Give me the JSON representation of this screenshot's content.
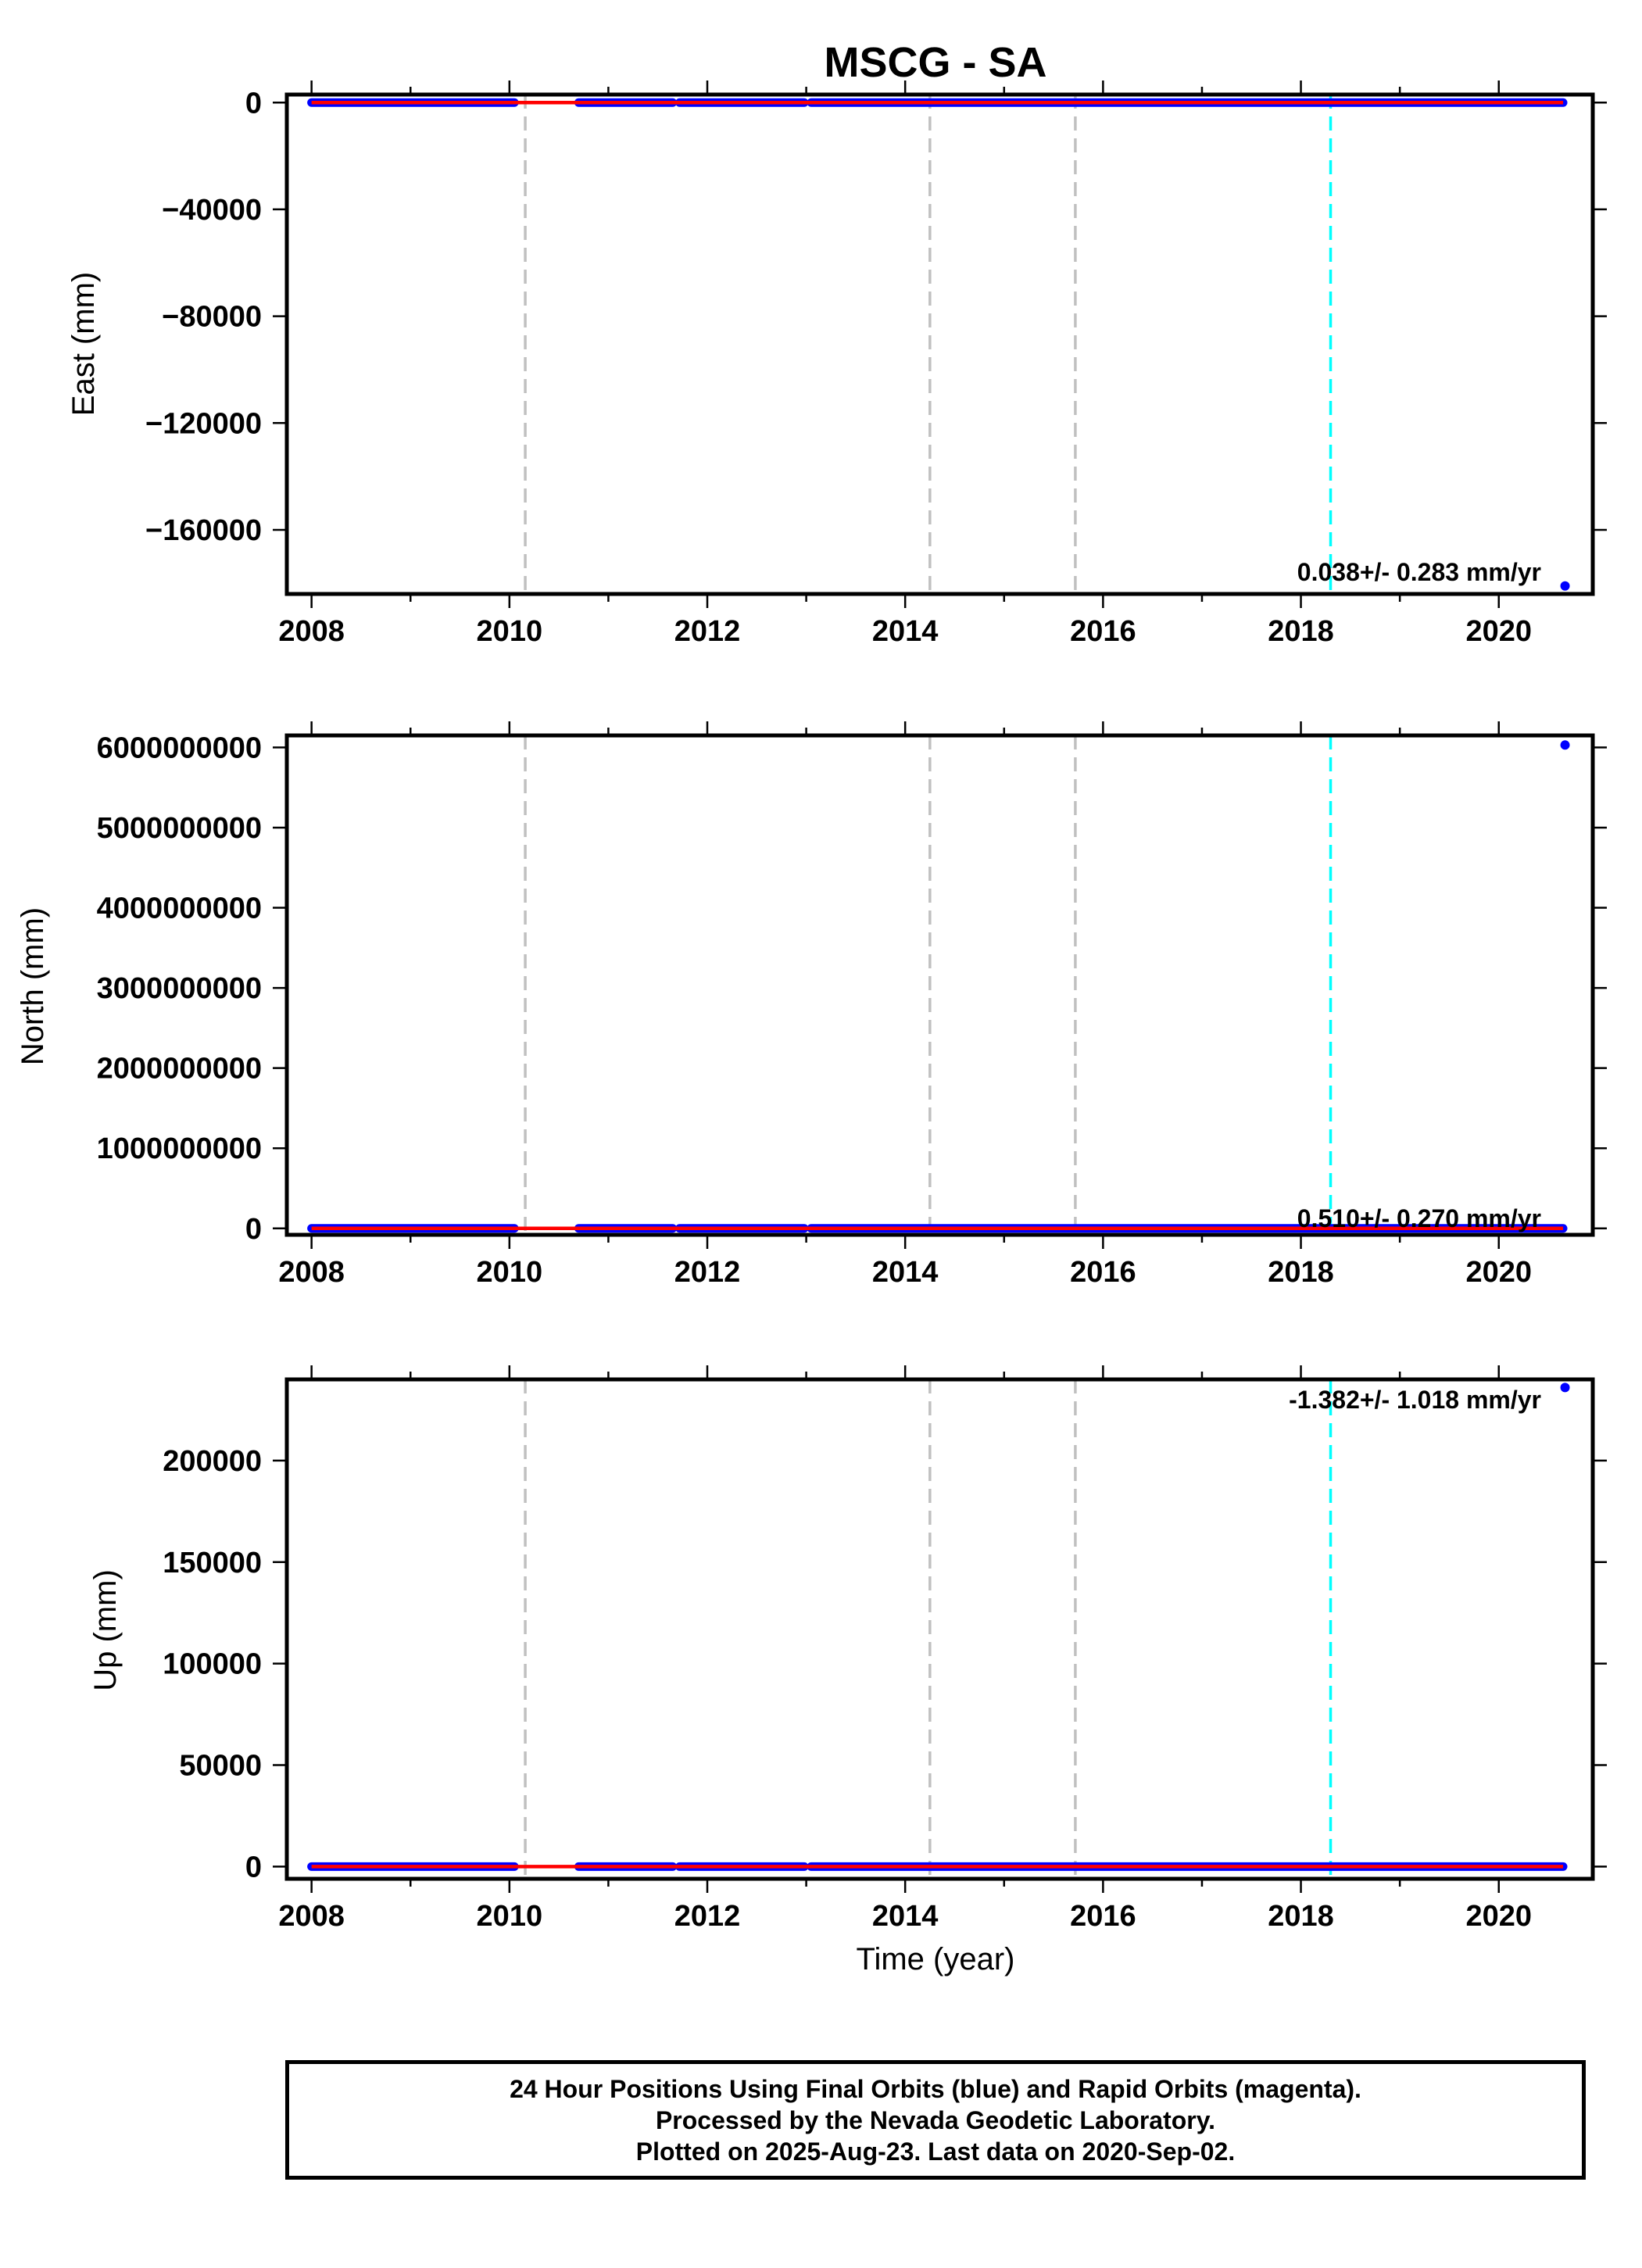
{
  "colors": {
    "final_orbits": "#0000ff",
    "rapid_orbits": "#ff00ff",
    "model_fit": "#ff0000",
    "equipment_change": "#c0c0c0",
    "earthquake": "#00ffff"
  },
  "chart_data": [
    {
      "type": "scatter",
      "title": "MSCG - SA",
      "xlabel": "",
      "ylabel": "East (mm)",
      "xlim": [
        2007.75,
        2020.95
      ],
      "ylim": [
        -184000,
        3000
      ],
      "xticks": [
        2008,
        2010,
        2012,
        2014,
        2016,
        2018,
        2020
      ],
      "yticks": [
        0,
        -40000,
        -80000,
        -120000,
        -160000
      ],
      "ytick_labels": [
        "0",
        "−40000",
        "−80000",
        "−120000",
        "−160000"
      ],
      "rate_label": "0.038+/- 0.283 mm/yr",
      "equipment_changes": [
        2010.16,
        2014.25,
        2015.72
      ],
      "earthquakes": [
        2018.3
      ],
      "data_segments": [
        [
          2008.0,
          2010.05
        ],
        [
          2010.7,
          2011.65
        ],
        [
          2011.72,
          2012.98
        ],
        [
          2013.05,
          2020.65
        ]
      ],
      "outliers": [
        {
          "x": 2020.67,
          "y": -181000
        }
      ],
      "grid": false
    },
    {
      "type": "scatter",
      "title": "",
      "xlabel": "",
      "ylabel": "North (mm)",
      "xlim": [
        2007.75,
        2020.95
      ],
      "ylim": [
        -80000000,
        6150000000
      ],
      "xticks": [
        2008,
        2010,
        2012,
        2014,
        2016,
        2018,
        2020
      ],
      "yticks": [
        0,
        1000000000,
        2000000000,
        3000000000,
        4000000000,
        5000000000,
        6000000000
      ],
      "ytick_labels": [
        "0",
        "1000000000",
        "2000000000",
        "3000000000",
        "4000000000",
        "5000000000",
        "6000000000"
      ],
      "rate_label": "0.510+/- 0.270 mm/yr",
      "equipment_changes": [
        2010.16,
        2014.25,
        2015.72
      ],
      "earthquakes": [
        2018.3
      ],
      "data_segments": [
        [
          2008.0,
          2010.05
        ],
        [
          2010.7,
          2011.65
        ],
        [
          2011.72,
          2012.98
        ],
        [
          2013.05,
          2020.65
        ]
      ],
      "outliers": [
        {
          "x": 2020.67,
          "y": 6030000000
        }
      ],
      "grid": false
    },
    {
      "type": "scatter",
      "title": "",
      "xlabel": "Time (year)",
      "ylabel": "Up (mm)",
      "xlim": [
        2007.75,
        2020.95
      ],
      "ylim": [
        -6000,
        240000
      ],
      "xticks": [
        2008,
        2010,
        2012,
        2014,
        2016,
        2018,
        2020
      ],
      "yticks": [
        0,
        50000,
        100000,
        150000,
        200000
      ],
      "ytick_labels": [
        "0",
        "50000",
        "100000",
        "150000",
        "200000"
      ],
      "rate_label": "-1.382+/- 1.018 mm/yr",
      "equipment_changes": [
        2010.16,
        2014.25,
        2015.72
      ],
      "earthquakes": [
        2018.3
      ],
      "data_segments": [
        [
          2008.0,
          2010.05
        ],
        [
          2010.7,
          2011.65
        ],
        [
          2011.72,
          2012.98
        ],
        [
          2013.05,
          2020.65
        ]
      ],
      "outliers": [
        {
          "x": 2020.67,
          "y": 236000
        }
      ],
      "grid": false
    }
  ],
  "footer": {
    "line1": "24 Hour Positions Using Final Orbits (blue) and Rapid Orbits (magenta).",
    "line2": "Processed by the Nevada Geodetic Laboratory.",
    "line3": "Plotted on 2025-Aug-23. Last data on 2020-Sep-02."
  }
}
